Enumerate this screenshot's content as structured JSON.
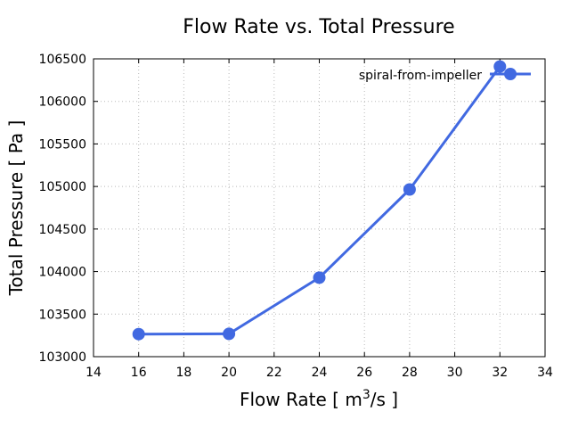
{
  "chart_data": {
    "type": "line",
    "title": "Flow Rate vs. Total Pressure",
    "xlabel": {
      "prefix": "Flow Rate [ m",
      "sup": "3",
      "suffix": "/s ]"
    },
    "ylabel": "Total Pressure [ Pa ]",
    "xlim": [
      14,
      34
    ],
    "ylim": [
      103000,
      106500
    ],
    "xticks": [
      14,
      16,
      18,
      20,
      22,
      24,
      26,
      28,
      30,
      32,
      34
    ],
    "yticks": [
      103000,
      103500,
      104000,
      104500,
      105000,
      105500,
      106000,
      106500
    ],
    "grid": true,
    "legend_position": "top-right",
    "series": [
      {
        "name": "spiral-from-impeller",
        "color": "#4169e1",
        "x": [
          16,
          20,
          24,
          28,
          32
        ],
        "y": [
          103265,
          103268,
          103928,
          104965,
          106410
        ]
      }
    ]
  }
}
